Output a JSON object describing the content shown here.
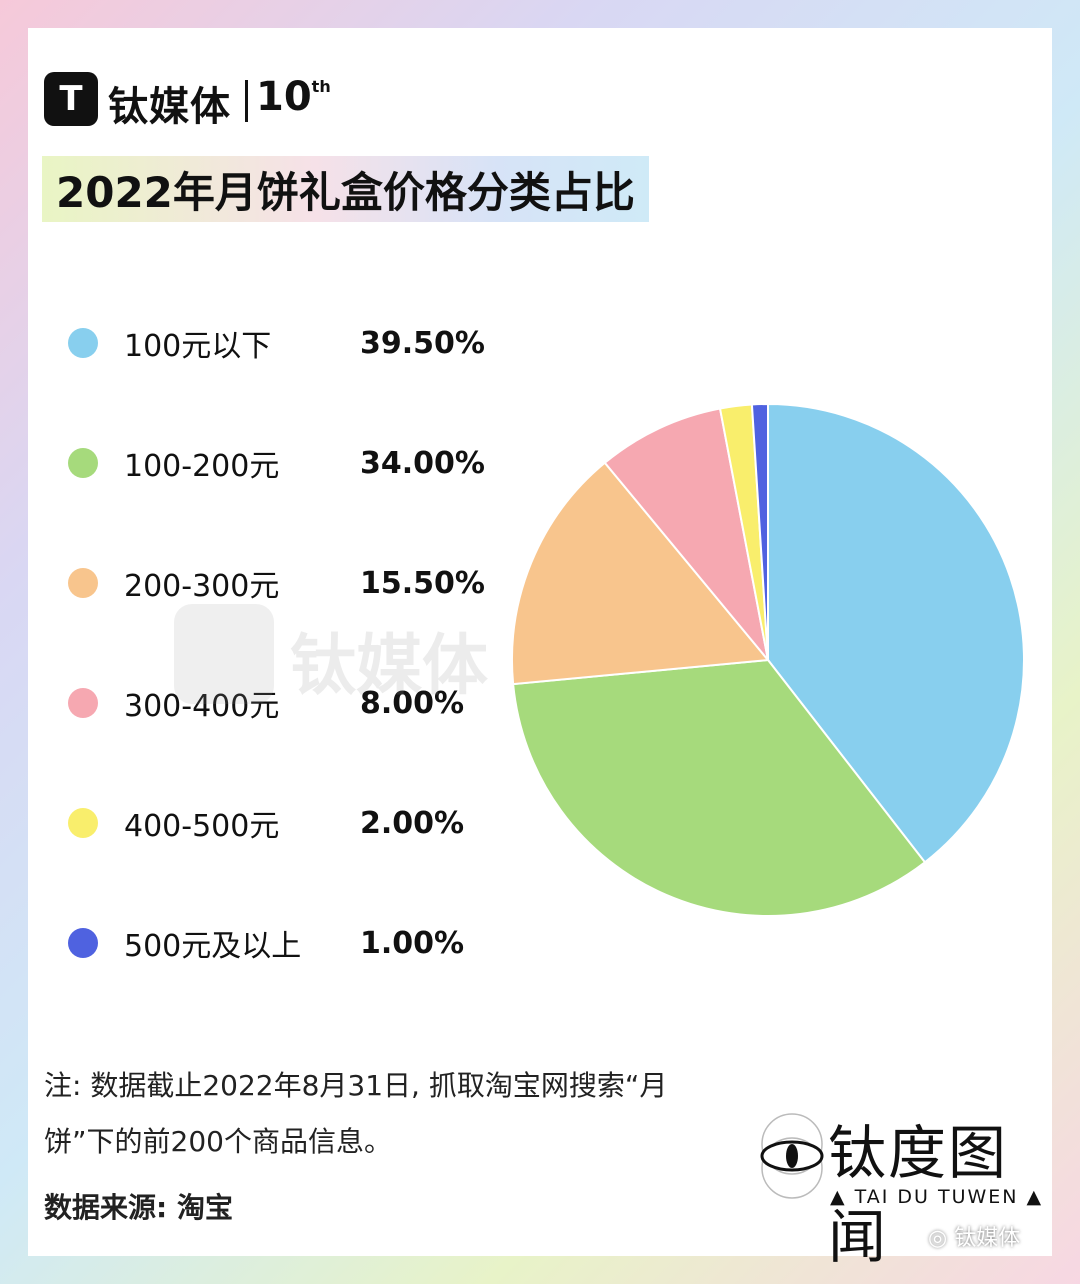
{
  "header": {
    "logo_mark": "T",
    "logo_text": "钛媒体",
    "anniversary": "10",
    "anniversary_suffix": "th"
  },
  "chart_data": {
    "type": "pie",
    "title": "2022年月饼礼盒价格分类占比",
    "legend_position": "left",
    "categories": [
      "100元以下",
      "100-200元",
      "200-300元",
      "300-400元",
      "400-500元",
      "500元及以上"
    ],
    "values": [
      39.5,
      34.0,
      15.5,
      8.0,
      2.0,
      1.0
    ],
    "value_labels": [
      "39.50%",
      "34.00%",
      "15.50%",
      "8.00%",
      "2.00%",
      "1.00%"
    ],
    "colors": [
      "#88cfee",
      "#a6da7c",
      "#f8c58d",
      "#f6a8b1",
      "#f9ee6c",
      "#4f62e0"
    ]
  },
  "watermark": {
    "main": "钛媒体",
    "cn": "钛度图闻",
    "en": "▲ TAI DU TUWEN ▲"
  },
  "footer": {
    "note": "注: 数据截止2022年8月31日, 抓取淘宝网搜索“月饼”下的前200个商品信息。",
    "source": "数据来源: 淘宝",
    "brand_cn": "钛度图闻",
    "brand_en": "▲ TAI DU TUWEN ▲",
    "wechat": "钛媒体",
    "eye_icon": "eye-icon",
    "wechat_icon": "wechat-icon"
  }
}
